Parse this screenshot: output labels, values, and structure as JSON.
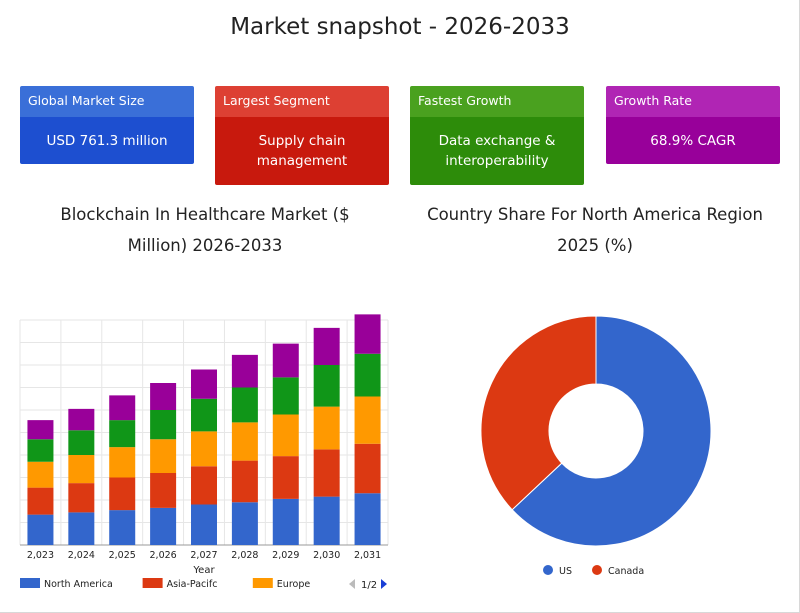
{
  "header": {
    "title": "Market snapshot - 2026-2033"
  },
  "cards": [
    {
      "label": "Global Market Size",
      "value": "USD 761.3 million",
      "head_color": "#3a6fd8",
      "body_color": "#1d4fd0"
    },
    {
      "label": "Largest Segment",
      "value": "Supply chain management",
      "head_color": "#dd4033",
      "body_color": "#c8190d"
    },
    {
      "label": "Fastest Growth",
      "value": "Data exchange & interoperability",
      "head_color": "#4aa11f",
      "body_color": "#2d8c0a"
    },
    {
      "label": "Growth Rate",
      "value": "68.9% CAGR",
      "head_color": "#b025b4",
      "body_color": "#98009a"
    }
  ],
  "chart_data": [
    {
      "type": "bar",
      "stacked": true,
      "title": "Blockchain In Healthcare Market ($ Million) 2026-2033",
      "xlabel": "Year",
      "ylabel": "",
      "categories": [
        "2,023",
        "2,024",
        "2,025",
        "2,026",
        "2,027",
        "2,028",
        "2,029",
        "2,030",
        "2,031"
      ],
      "ylim": [
        0,
        10
      ],
      "grid": true,
      "series": [
        {
          "name": "North America",
          "color": "#3366cc",
          "values": [
            1.35,
            1.45,
            1.55,
            1.65,
            1.8,
            1.9,
            2.05,
            2.15,
            2.3
          ]
        },
        {
          "name": "Asia-Pacifc",
          "color": "#dc3912",
          "values": [
            1.2,
            1.3,
            1.45,
            1.55,
            1.7,
            1.85,
            1.9,
            2.1,
            2.2
          ]
        },
        {
          "name": "Europe",
          "color": "#ff9900",
          "values": [
            1.15,
            1.25,
            1.35,
            1.5,
            1.55,
            1.7,
            1.85,
            1.9,
            2.1
          ]
        },
        {
          "name": "",
          "color": "#109618",
          "values": [
            1.0,
            1.1,
            1.2,
            1.3,
            1.45,
            1.55,
            1.65,
            1.85,
            1.9
          ]
        },
        {
          "name": "",
          "color": "#990099",
          "values": [
            0.85,
            0.95,
            1.1,
            1.2,
            1.3,
            1.45,
            1.5,
            1.65,
            1.75
          ]
        }
      ],
      "legend": {
        "placement": "bottom",
        "page": "1/2"
      }
    },
    {
      "type": "pie",
      "donut": true,
      "title": "Country Share For North America Region 2025 (%)",
      "labels": [
        "US",
        "Canada"
      ],
      "values": [
        63,
        37
      ],
      "colors": [
        "#3366cc",
        "#dc3912"
      ],
      "legend": {
        "placement": "bottom"
      }
    }
  ]
}
